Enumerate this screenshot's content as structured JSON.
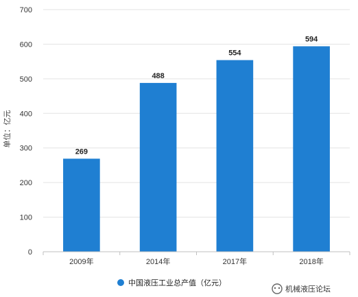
{
  "chart_data": {
    "type": "bar",
    "categories": [
      "2009年",
      "2014年",
      "2017年",
      "2018年"
    ],
    "values": [
      269,
      488,
      554,
      594
    ],
    "ylabel": "单位：亿元",
    "ylim": [
      0,
      700
    ],
    "yticks": [
      0,
      100,
      200,
      300,
      400,
      500,
      600,
      700
    ],
    "grid": true,
    "legend": {
      "placement": "bottom",
      "entries": [
        "中国液压工业总产值（亿元）"
      ]
    },
    "colors": {
      "bar": "#1f7fd2",
      "legend_marker": "#1f7fd2"
    }
  },
  "watermark": {
    "text": "机械液压论坛"
  }
}
